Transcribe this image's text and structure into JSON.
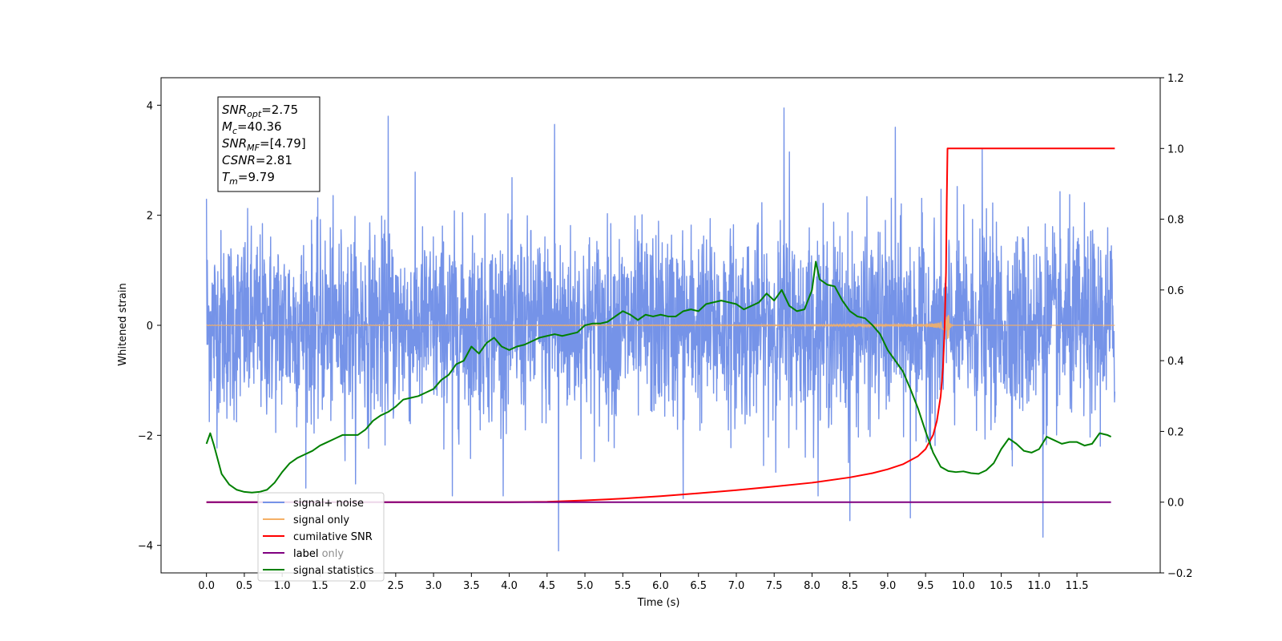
{
  "chart_data": {
    "type": "line",
    "xlabel": "Time (s)",
    "ylabel": "Whitened strain",
    "xlim": [
      -0.6,
      12.6
    ],
    "ylim": [
      -4.5,
      4.5
    ],
    "ylim_right": [
      -0.2,
      1.2
    ],
    "x_ticks": [
      "0.0",
      "0.5",
      "1.0",
      "1.5",
      "2.0",
      "2.5",
      "3.0",
      "3.5",
      "4.0",
      "4.5",
      "5.0",
      "5.5",
      "6.0",
      "6.5",
      "7.0",
      "7.5",
      "8.0",
      "8.5",
      "9.0",
      "9.5",
      "10.0",
      "10.5",
      "11.0",
      "11.5"
    ],
    "y_ticks_left": [
      -4,
      -2,
      0,
      2,
      4
    ],
    "y_ticks_right": [
      "−0.2",
      "0.0",
      "0.2",
      "0.4",
      "0.6",
      "0.8",
      "1.0",
      "1.2"
    ],
    "legend_position": "lower-left",
    "annotation": [
      {
        "sym": "SNR",
        "sub": "opt",
        "val": "=2.75"
      },
      {
        "sym": "M",
        "sub": "c",
        "val": "=40.36"
      },
      {
        "sym": "SNR",
        "sub": "MF",
        "val": "=[4.79]"
      },
      {
        "sym": "CSNR",
        "sub": "",
        "val": "=2.81"
      },
      {
        "sym": "T",
        "sub": "m",
        "val": "=9.79"
      }
    ],
    "series": [
      {
        "name": "signal+ noise",
        "color": "#7593e8",
        "axis": "left",
        "style": "noise",
        "x_range": [
          0,
          12
        ],
        "std": 0.85,
        "extremes": [
          [
            0.0,
            2.3
          ],
          [
            2.4,
            3.8
          ],
          [
            4.6,
            3.65
          ],
          [
            4.65,
            -4.1
          ],
          [
            7.63,
            3.95
          ],
          [
            8.5,
            -3.55
          ],
          [
            9.1,
            3.6
          ],
          [
            9.3,
            -3.5
          ],
          [
            11.05,
            -3.85
          ],
          [
            3.25,
            -3.1
          ],
          [
            6.3,
            -3.15
          ],
          [
            7.7,
            3.15
          ],
          [
            10.25,
            3.2
          ]
        ]
      },
      {
        "name": "signal only",
        "color": "#f5b066",
        "axis": "left",
        "style": "chirp",
        "merger_time": 9.79
      },
      {
        "name": "cumilative SNR",
        "color": "#ff0000",
        "axis": "right",
        "points": [
          [
            0,
            0
          ],
          [
            4.0,
            0
          ],
          [
            4.5,
            0.001
          ],
          [
            5.0,
            0.005
          ],
          [
            5.5,
            0.01
          ],
          [
            6.0,
            0.017
          ],
          [
            6.5,
            0.025
          ],
          [
            7.0,
            0.034
          ],
          [
            7.5,
            0.044
          ],
          [
            8.0,
            0.055
          ],
          [
            8.5,
            0.07
          ],
          [
            8.8,
            0.082
          ],
          [
            9.0,
            0.093
          ],
          [
            9.2,
            0.107
          ],
          [
            9.4,
            0.13
          ],
          [
            9.5,
            0.15
          ],
          [
            9.6,
            0.19
          ],
          [
            9.65,
            0.23
          ],
          [
            9.7,
            0.3
          ],
          [
            9.73,
            0.38
          ],
          [
            9.75,
            0.48
          ],
          [
            9.77,
            0.65
          ],
          [
            9.78,
            0.85
          ],
          [
            9.79,
            1.0
          ],
          [
            12.0,
            1.0
          ]
        ]
      },
      {
        "name": "label",
        "color": "#800080",
        "axis": "right",
        "points": [
          [
            0,
            0
          ],
          [
            11.95,
            0
          ]
        ]
      },
      {
        "name": "signal statistics",
        "color": "#008000",
        "axis": "right",
        "points": [
          [
            0.0,
            0.165
          ],
          [
            0.05,
            0.195
          ],
          [
            0.1,
            0.16
          ],
          [
            0.2,
            0.08
          ],
          [
            0.3,
            0.05
          ],
          [
            0.4,
            0.035
          ],
          [
            0.5,
            0.029
          ],
          [
            0.6,
            0.027
          ],
          [
            0.7,
            0.029
          ],
          [
            0.8,
            0.035
          ],
          [
            0.9,
            0.055
          ],
          [
            1.0,
            0.085
          ],
          [
            1.1,
            0.11
          ],
          [
            1.2,
            0.125
          ],
          [
            1.3,
            0.135
          ],
          [
            1.4,
            0.145
          ],
          [
            1.5,
            0.16
          ],
          [
            1.6,
            0.17
          ],
          [
            1.7,
            0.18
          ],
          [
            1.8,
            0.19
          ],
          [
            1.9,
            0.19
          ],
          [
            2.0,
            0.19
          ],
          [
            2.1,
            0.205
          ],
          [
            2.2,
            0.23
          ],
          [
            2.3,
            0.245
          ],
          [
            2.4,
            0.255
          ],
          [
            2.5,
            0.27
          ],
          [
            2.6,
            0.29
          ],
          [
            2.7,
            0.295
          ],
          [
            2.8,
            0.3
          ],
          [
            2.9,
            0.31
          ],
          [
            3.0,
            0.32
          ],
          [
            3.1,
            0.345
          ],
          [
            3.2,
            0.36
          ],
          [
            3.3,
            0.39
          ],
          [
            3.4,
            0.4
          ],
          [
            3.5,
            0.44
          ],
          [
            3.6,
            0.42
          ],
          [
            3.7,
            0.45
          ],
          [
            3.8,
            0.465
          ],
          [
            3.9,
            0.44
          ],
          [
            4.0,
            0.43
          ],
          [
            4.1,
            0.44
          ],
          [
            4.2,
            0.445
          ],
          [
            4.3,
            0.455
          ],
          [
            4.4,
            0.465
          ],
          [
            4.5,
            0.47
          ],
          [
            4.6,
            0.475
          ],
          [
            4.7,
            0.47
          ],
          [
            4.8,
            0.475
          ],
          [
            4.9,
            0.48
          ],
          [
            5.0,
            0.5
          ],
          [
            5.1,
            0.505
          ],
          [
            5.2,
            0.505
          ],
          [
            5.3,
            0.51
          ],
          [
            5.4,
            0.525
          ],
          [
            5.5,
            0.54
          ],
          [
            5.6,
            0.53
          ],
          [
            5.7,
            0.515
          ],
          [
            5.8,
            0.53
          ],
          [
            5.9,
            0.525
          ],
          [
            6.0,
            0.53
          ],
          [
            6.1,
            0.525
          ],
          [
            6.2,
            0.525
          ],
          [
            6.3,
            0.54
          ],
          [
            6.4,
            0.545
          ],
          [
            6.5,
            0.54
          ],
          [
            6.6,
            0.56
          ],
          [
            6.7,
            0.565
          ],
          [
            6.8,
            0.57
          ],
          [
            6.9,
            0.565
          ],
          [
            7.0,
            0.56
          ],
          [
            7.1,
            0.545
          ],
          [
            7.2,
            0.555
          ],
          [
            7.3,
            0.565
          ],
          [
            7.4,
            0.59
          ],
          [
            7.5,
            0.57
          ],
          [
            7.6,
            0.6
          ],
          [
            7.7,
            0.555
          ],
          [
            7.8,
            0.54
          ],
          [
            7.9,
            0.545
          ],
          [
            8.0,
            0.6
          ],
          [
            8.05,
            0.68
          ],
          [
            8.1,
            0.63
          ],
          [
            8.2,
            0.615
          ],
          [
            8.3,
            0.61
          ],
          [
            8.4,
            0.57
          ],
          [
            8.5,
            0.54
          ],
          [
            8.6,
            0.525
          ],
          [
            8.7,
            0.52
          ],
          [
            8.8,
            0.5
          ],
          [
            8.9,
            0.475
          ],
          [
            9.0,
            0.43
          ],
          [
            9.1,
            0.4
          ],
          [
            9.2,
            0.37
          ],
          [
            9.3,
            0.32
          ],
          [
            9.4,
            0.265
          ],
          [
            9.5,
            0.2
          ],
          [
            9.6,
            0.14
          ],
          [
            9.7,
            0.1
          ],
          [
            9.8,
            0.088
          ],
          [
            9.9,
            0.085
          ],
          [
            10.0,
            0.087
          ],
          [
            10.1,
            0.082
          ],
          [
            10.2,
            0.08
          ],
          [
            10.3,
            0.09
          ],
          [
            10.4,
            0.11
          ],
          [
            10.5,
            0.15
          ],
          [
            10.6,
            0.18
          ],
          [
            10.7,
            0.165
          ],
          [
            10.8,
            0.145
          ],
          [
            10.9,
            0.14
          ],
          [
            11.0,
            0.15
          ],
          [
            11.1,
            0.185
          ],
          [
            11.2,
            0.175
          ],
          [
            11.3,
            0.165
          ],
          [
            11.4,
            0.17
          ],
          [
            11.5,
            0.17
          ],
          [
            11.6,
            0.16
          ],
          [
            11.7,
            0.165
          ],
          [
            11.8,
            0.195
          ],
          [
            11.9,
            0.19
          ],
          [
            11.95,
            0.185
          ]
        ]
      }
    ],
    "legend_entries": [
      "signal+ noise",
      "signal only",
      "cumilative SNR",
      "label",
      "signal statistics"
    ],
    "ghost_legend_text": "label only"
  }
}
